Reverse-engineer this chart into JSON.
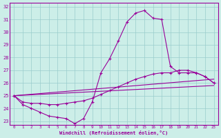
{
  "xlabel": "Windchill (Refroidissement éolien,°C)",
  "xlim": [
    -0.5,
    23.5
  ],
  "ylim": [
    22.7,
    32.3
  ],
  "yticks": [
    23,
    24,
    25,
    26,
    27,
    28,
    29,
    30,
    31,
    32
  ],
  "xticks": [
    0,
    1,
    2,
    3,
    4,
    5,
    6,
    7,
    8,
    9,
    10,
    11,
    12,
    13,
    14,
    15,
    16,
    17,
    18,
    19,
    20,
    21,
    22,
    23
  ],
  "line_color": "#990099",
  "background_color": "#cceee8",
  "grid_color": "#99cccc",
  "lines": [
    {
      "x": [
        0,
        1,
        2,
        3,
        4,
        5,
        6,
        7,
        8,
        9,
        10,
        11,
        12,
        13,
        14,
        15,
        16,
        17,
        18,
        19,
        20,
        21,
        22,
        23
      ],
      "y": [
        25.0,
        24.3,
        24.0,
        23.7,
        23.4,
        23.3,
        23.2,
        22.8,
        23.2,
        24.5,
        26.8,
        27.9,
        29.3,
        30.8,
        31.5,
        31.7,
        31.1,
        31.0,
        27.3,
        26.8,
        26.8,
        26.8,
        26.5,
        26.0
      ],
      "marker": true
    },
    {
      "x": [
        0,
        1,
        2,
        3,
        4,
        5,
        6,
        7,
        8,
        9,
        10,
        11,
        12,
        13,
        14,
        15,
        16,
        17,
        18,
        19,
        20,
        21,
        22,
        23
      ],
      "y": [
        25.0,
        24.5,
        24.4,
        24.4,
        24.3,
        24.3,
        24.4,
        24.5,
        24.6,
        24.8,
        25.1,
        25.4,
        25.7,
        26.0,
        26.3,
        26.5,
        26.7,
        26.8,
        26.8,
        27.0,
        27.0,
        26.8,
        26.5,
        26.0
      ],
      "marker": true
    },
    {
      "x": [
        0,
        23
      ],
      "y": [
        25.0,
        25.8
      ],
      "marker": false
    },
    {
      "x": [
        0,
        23
      ],
      "y": [
        25.0,
        26.3
      ],
      "marker": false
    }
  ]
}
